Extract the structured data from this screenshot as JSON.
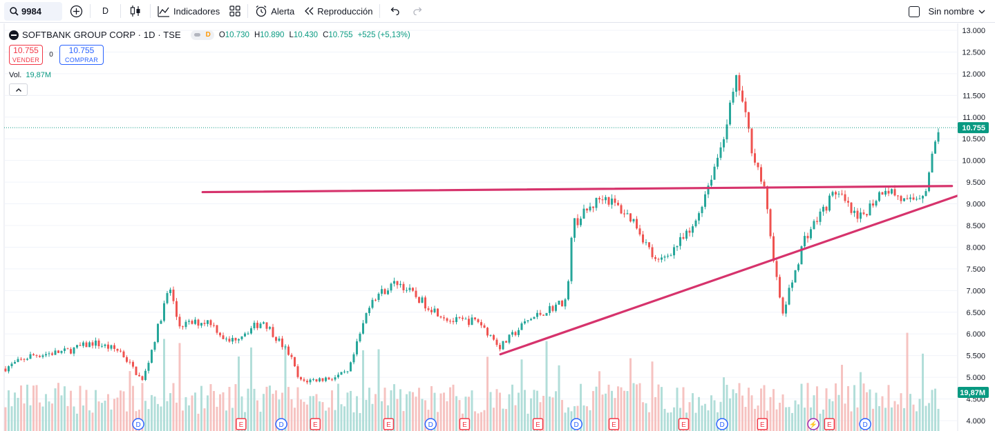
{
  "toolbar": {
    "symbol": "9984",
    "interval": "D",
    "indicators_label": "Indicadores",
    "alert_label": "Alerta",
    "replay_label": "Reproducción",
    "layout_name": "Sin nombre"
  },
  "legend": {
    "title": "SOFTBANK GROUP CORP · 1D · TSE",
    "data_badge": "D",
    "open_label": "O",
    "open": "10.730",
    "high_label": "H",
    "high": "10.890",
    "low_label": "L",
    "low": "10.430",
    "close_label": "C",
    "close": "10.755",
    "change": "+525 (+5,13%)"
  },
  "trade": {
    "sell_price": "10.755",
    "sell_label": "VENDER",
    "spread": "0",
    "buy_price": "10.755",
    "buy_label": "COMPRAR"
  },
  "volume_legend": {
    "label": "Vol.",
    "value": "19,87M"
  },
  "colors": {
    "up": "#26a69a",
    "down": "#ef5350",
    "trendline": "#d6336c",
    "axis_price_bg": "#089981",
    "dividend": "#2962ff",
    "earnings": "#f23645",
    "split": "#089981"
  },
  "chart_data": {
    "type": "candlestick",
    "y_axis": {
      "ticks": [
        "13.000",
        "12.500",
        "12.000",
        "11.500",
        "11.000",
        "10.500",
        "10.000",
        "9.500",
        "9.000",
        "8.500",
        "8.000",
        "7.500",
        "7.000",
        "6.500",
        "6.000",
        "5.500",
        "5.000",
        "4.500",
        "4.000"
      ],
      "min": 4000,
      "max": 13000,
      "scale": "linear"
    },
    "last_price": 10755,
    "last_price_label": "10.755",
    "volume_label": "19,87M",
    "price_path": [
      {
        "t": 0,
        "p": 5200
      },
      {
        "t": 0.03,
        "p": 5500
      },
      {
        "t": 0.07,
        "p": 5600
      },
      {
        "t": 0.1,
        "p": 5800
      },
      {
        "t": 0.13,
        "p": 5600
      },
      {
        "t": 0.155,
        "p": 4900
      },
      {
        "t": 0.17,
        "p": 6000
      },
      {
        "t": 0.185,
        "p": 7100
      },
      {
        "t": 0.195,
        "p": 6200
      },
      {
        "t": 0.23,
        "p": 6300
      },
      {
        "t": 0.25,
        "p": 5800
      },
      {
        "t": 0.29,
        "p": 6300
      },
      {
        "t": 0.32,
        "p": 5500
      },
      {
        "t": 0.33,
        "p": 4900
      },
      {
        "t": 0.37,
        "p": 5000
      },
      {
        "t": 0.385,
        "p": 5100
      },
      {
        "t": 0.41,
        "p": 6800
      },
      {
        "t": 0.44,
        "p": 7200
      },
      {
        "t": 0.47,
        "p": 6700
      },
      {
        "t": 0.5,
        "p": 6300
      },
      {
        "t": 0.53,
        "p": 6300
      },
      {
        "t": 0.555,
        "p": 5700
      },
      {
        "t": 0.585,
        "p": 6300
      },
      {
        "t": 0.63,
        "p": 6800
      },
      {
        "t": 0.635,
        "p": 8500
      },
      {
        "t": 0.67,
        "p": 9200
      },
      {
        "t": 0.705,
        "p": 8600
      },
      {
        "t": 0.73,
        "p": 7600
      },
      {
        "t": 0.77,
        "p": 8400
      },
      {
        "t": 0.8,
        "p": 10200
      },
      {
        "t": 0.82,
        "p": 11900
      },
      {
        "t": 0.835,
        "p": 10400
      },
      {
        "t": 0.85,
        "p": 9300
      },
      {
        "t": 0.87,
        "p": 6400
      },
      {
        "t": 0.895,
        "p": 8200
      },
      {
        "t": 0.93,
        "p": 9300
      },
      {
        "t": 0.955,
        "p": 8600
      },
      {
        "t": 0.985,
        "p": 9400
      },
      {
        "t": 1.01,
        "p": 9000
      },
      {
        "t": 1.03,
        "p": 9300
      },
      {
        "t": 1.045,
        "p": 10755
      }
    ],
    "trendlines": [
      {
        "name": "resistance",
        "from": {
          "t": 0.222,
          "p": 9270
        },
        "to": {
          "t": 1.06,
          "p": 9410
        }
      },
      {
        "name": "support",
        "from": {
          "t": 0.555,
          "p": 5530
        },
        "to": {
          "t": 1.11,
          "p": 9500
        }
      }
    ],
    "events": [
      {
        "type": "D",
        "t": 0.15
      },
      {
        "type": "E",
        "t": 0.265
      },
      {
        "type": "D",
        "t": 0.31
      },
      {
        "type": "E",
        "t": 0.348
      },
      {
        "type": "E",
        "t": 0.43
      },
      {
        "type": "D",
        "t": 0.477
      },
      {
        "type": "E",
        "t": 0.515
      },
      {
        "type": "E",
        "t": 0.597
      },
      {
        "type": "D",
        "t": 0.64
      },
      {
        "type": "E",
        "t": 0.682
      },
      {
        "type": "E",
        "t": 0.76
      },
      {
        "type": "D",
        "t": 0.803
      },
      {
        "type": "E",
        "t": 0.848
      },
      {
        "type": "S",
        "t": 0.905
      },
      {
        "type": "E",
        "t": 0.923
      },
      {
        "type": "D",
        "t": 0.963
      }
    ],
    "grid": true
  }
}
